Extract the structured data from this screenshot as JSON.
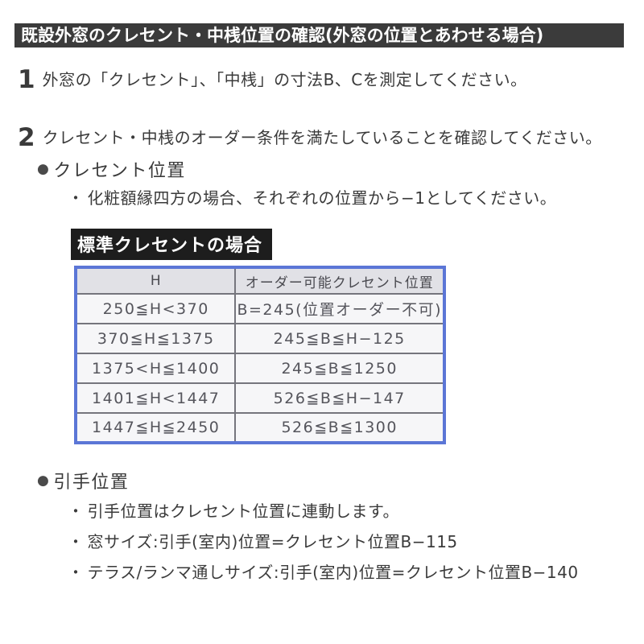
{
  "document": {
    "title_bar": {
      "text": "既設外窓のクレセント・中桟位置の確認(外窓の位置とあわせる場合)"
    },
    "steps": [
      {
        "number": "1",
        "text": "外窓の「クレセント」、「中桟」の寸法B、Cを測定してください。"
      },
      {
        "number": "2",
        "text": "クレセント・中桟のオーダー条件を満たしていることを確認してください。"
      }
    ],
    "crescent_section": {
      "heading": "クレセント位置",
      "note": "化粧額縁四方の場合、それぞれの位置から−1としてください。",
      "table_label": "標準クレセントの場合",
      "table": {
        "headers": [
          "H",
          "オーダー可能クレセント位置"
        ],
        "rows": [
          [
            "250≦H<370",
            "B=245(位置オーダー不可)"
          ],
          [
            "370≦H≦1375",
            "245≦B≦H−125"
          ],
          [
            "1375<H≦1400",
            "245≦B≦1250"
          ],
          [
            "1401≦H<1447",
            "526≦B≦H−147"
          ],
          [
            "1447≦H≦2450",
            "526≦B≦1300"
          ]
        ]
      }
    },
    "handle_section": {
      "heading": "引手位置",
      "notes": [
        "引手位置はクレセント位置に連動します。",
        "窓サイズ:引手(室内)位置=クレセント位置B−115",
        "テラス/ランマ通しサイズ:引手(室内)位置=クレセント位置B−140"
      ]
    },
    "glyphs": {
      "large_bullet": "●",
      "small_bullet": "・"
    }
  },
  "colors": {
    "title_bar_bg": "#3b3b3b",
    "label_bg": "#1d1d1d",
    "table_border": "#5b76d6",
    "table_header_bg": "#e1e1e6",
    "table_cell_bg": "#f6f6f8",
    "text_dark": "#3a3a3a",
    "text_table": "#55555c"
  }
}
